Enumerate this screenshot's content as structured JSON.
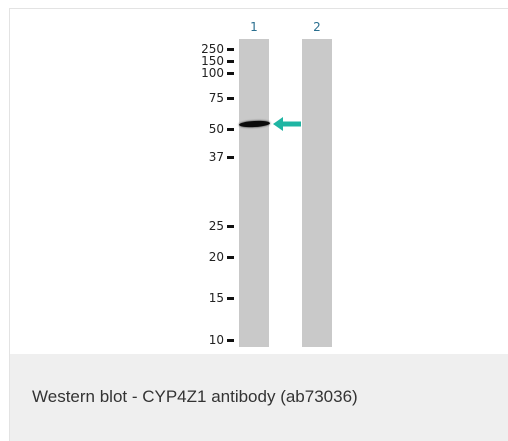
{
  "figure": {
    "lanes": [
      {
        "label": "1"
      },
      {
        "label": "2"
      }
    ],
    "markers": [
      {
        "label": "250"
      },
      {
        "label": "150"
      },
      {
        "label": "100"
      },
      {
        "label": "75"
      },
      {
        "label": "50"
      },
      {
        "label": "37"
      },
      {
        "label": "25"
      },
      {
        "label": "20"
      },
      {
        "label": "15"
      },
      {
        "label": "10"
      }
    ],
    "band_color": "#0b0b0b",
    "arrow_color": "#1fb5a3",
    "lane_color": "#c9c9c9"
  },
  "caption": {
    "text": "Western blot - CYP4Z1 antibody (ab73036)"
  }
}
